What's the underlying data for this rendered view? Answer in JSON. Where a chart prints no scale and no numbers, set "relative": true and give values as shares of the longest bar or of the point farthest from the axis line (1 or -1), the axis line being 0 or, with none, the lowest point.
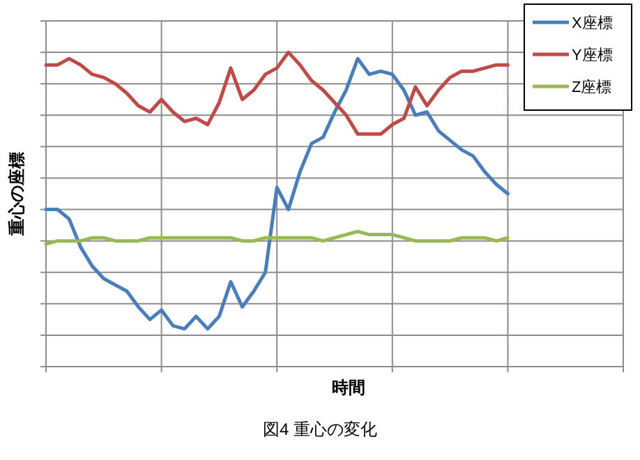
{
  "chart_data": {
    "type": "line",
    "title": "図4  重心の変化",
    "xlabel": "時間",
    "ylabel": "重心の座標",
    "relative": true,
    "grid": true,
    "legend": "top right",
    "categories": [
      null,
      null,
      null,
      null,
      null,
      null,
      null,
      null,
      null,
      null,
      null,
      null,
      null,
      null,
      null,
      null,
      null,
      null,
      null,
      null,
      null,
      null,
      null,
      null,
      null,
      null,
      null,
      null,
      null,
      null,
      null,
      null,
      null,
      null,
      null,
      null,
      null,
      null,
      null,
      null,
      null,
      null,
      null,
      null,
      null,
      null,
      null,
      null,
      null,
      null,
      null
    ],
    "series": [
      {
        "name": "X座標",
        "color": "#4a7ebb",
        "values": [
          0.5,
          0.5,
          0.47,
          0.38,
          0.32,
          0.28,
          0.26,
          0.24,
          0.19,
          0.15,
          0.18,
          0.13,
          0.12,
          0.16,
          0.12,
          0.16,
          0.27,
          0.19,
          0.24,
          0.3,
          0.57,
          0.5,
          0.62,
          0.71,
          0.73,
          0.81,
          0.88,
          0.98,
          0.93,
          0.94,
          0.93,
          0.88,
          0.8,
          0.81,
          0.75,
          0.72,
          0.69,
          0.67,
          0.62,
          0.58,
          0.55,
          null,
          null,
          null,
          null,
          null,
          null,
          null,
          null,
          null,
          null
        ]
      },
      {
        "name": "Y座標",
        "color": "#be4b48",
        "values": [
          0.96,
          0.96,
          0.98,
          0.96,
          0.93,
          0.92,
          0.9,
          0.87,
          0.83,
          0.81,
          0.85,
          0.81,
          0.78,
          0.79,
          0.77,
          0.84,
          0.95,
          0.85,
          0.88,
          0.93,
          0.95,
          1,
          0.96,
          0.91,
          0.88,
          0.84,
          0.8,
          0.74,
          0.74,
          0.74,
          0.77,
          0.79,
          0.89,
          0.83,
          0.88,
          0.92,
          0.94,
          0.94,
          0.95,
          0.96,
          0.96,
          null,
          null,
          null,
          null,
          null,
          null,
          null,
          null,
          null,
          null
        ]
      },
      {
        "name": "Z座標",
        "color": "#98b954",
        "values": [
          0.39,
          0.4,
          0.4,
          0.4,
          0.41,
          0.41,
          0.4,
          0.4,
          0.4,
          0.41,
          0.41,
          0.41,
          0.41,
          0.41,
          0.41,
          0.41,
          0.41,
          0.4,
          0.4,
          0.41,
          0.41,
          0.41,
          0.41,
          0.41,
          0.4,
          0.41,
          0.42,
          0.43,
          0.42,
          0.42,
          0.42,
          0.41,
          0.4,
          0.4,
          0.4,
          0.4,
          0.41,
          0.41,
          0.41,
          0.4,
          0.41,
          null,
          null,
          null,
          null,
          null,
          null,
          null,
          null,
          null,
          null
        ]
      }
    ]
  }
}
